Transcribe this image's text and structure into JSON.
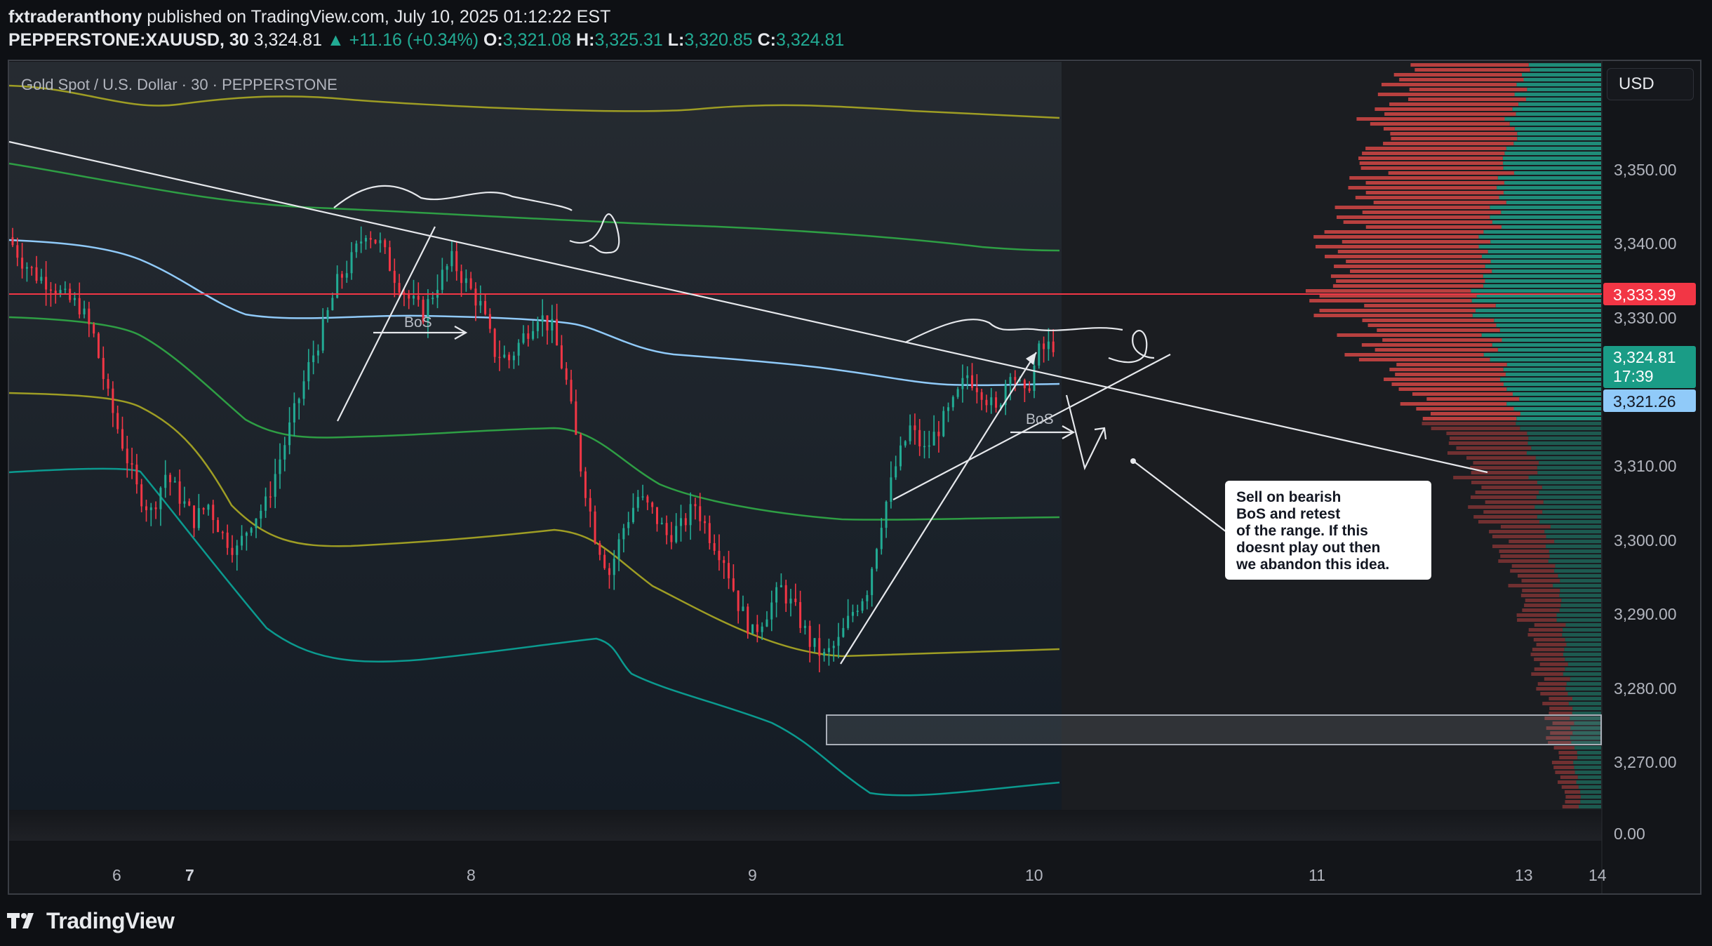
{
  "header": {
    "author": "fxtraderanthony",
    "published_text": "published on TradingView.com, July 10, 2025 01:12:22 EST",
    "symbol": "PEPPERSTONE:XAUUSD, 30",
    "last": "3,324.81",
    "change": "+11.16 (+0.34%)",
    "o_label": "O:",
    "o_val": "3,321.08",
    "h_label": "H:",
    "h_val": "3,325.31",
    "l_label": "L:",
    "l_val": "3,320.85",
    "c_label": "C:",
    "c_val": "3,324.81"
  },
  "chart": {
    "legend_title": "Gold Spot / U.S. Dollar · 30 · PEPPERSTONE",
    "currency_button": "USD",
    "price_scale": [
      "3,350.00",
      "3,340.00",
      "3,330.00",
      "3,310.00",
      "3,300.00",
      "3,290.00",
      "3,280.00",
      "3,270.00"
    ],
    "price_badges": {
      "red_line": "3,333.39",
      "last_price": "3,324.81",
      "countdown": "17:39",
      "blue_line": "3,321.26"
    },
    "volume_scale_label": "0.00",
    "time_labels": [
      "6",
      "7",
      "8",
      "9",
      "10",
      "11",
      "13",
      "14"
    ],
    "annotations": {
      "bos_1": "BoS",
      "bos_2": "BoS",
      "note_lines": [
        "Sell on bearish",
        "BoS and retest",
        "of the range. If this",
        "doesnt play out then",
        "we abandon this idea."
      ]
    },
    "colors": {
      "up": "#22ab94",
      "down": "#f23645",
      "red_line": "#f23645",
      "blue_line": "#90caf9",
      "teal_badge": "#1a9c86"
    }
  },
  "chart_data": {
    "type": "candlestick",
    "symbol": "PEPPERSTONE:XAUUSD",
    "timeframe": "30",
    "ylim": [
      3264,
      3362
    ],
    "x_ticks": [
      "6",
      "7",
      "8",
      "9",
      "10",
      "11",
      "13",
      "14"
    ],
    "close_path": [
      3339,
      3336,
      3334,
      3333,
      3331,
      3330,
      3326,
      3318,
      3312,
      3306,
      3303,
      3308,
      3305,
      3302,
      3304,
      3300,
      3298,
      3302,
      3304,
      3310,
      3316,
      3322,
      3327,
      3333,
      3336,
      3340,
      3338,
      3334,
      3331,
      3329,
      3333,
      3336,
      3333,
      3330,
      3324,
      3323,
      3326,
      3329,
      3327,
      3320,
      3309,
      3300,
      3295,
      3301,
      3305,
      3303,
      3300,
      3301,
      3304,
      3300,
      3297,
      3291,
      3287,
      3290,
      3293,
      3290,
      3286,
      3284,
      3286,
      3290,
      3293,
      3302,
      3309,
      3314,
      3311,
      3314,
      3317,
      3321,
      3319,
      3316,
      3322,
      3318,
      3324,
      3325
    ],
    "horizontal_levels": [
      3333.39,
      3321.26
    ],
    "last_price": 3324.81,
    "demand_zone": [
      3272.5,
      3276.5
    ]
  }
}
